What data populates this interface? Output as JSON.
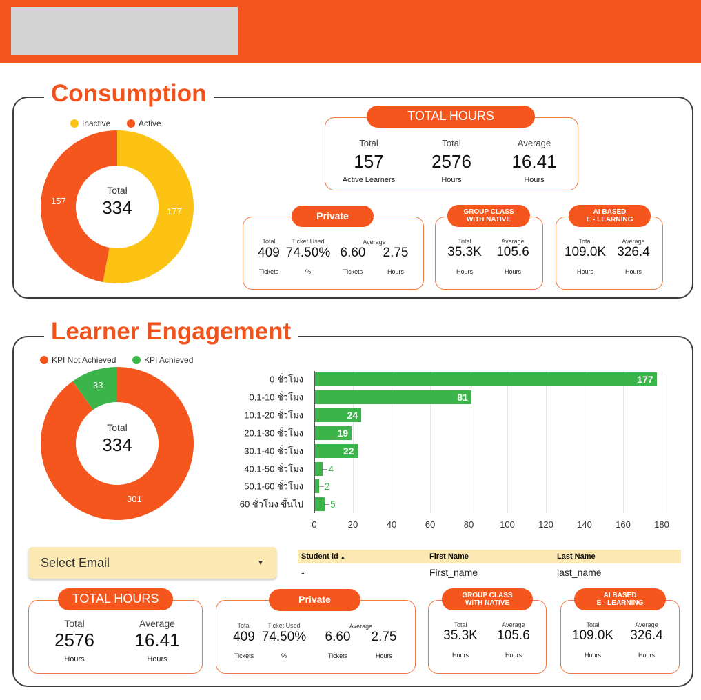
{
  "consumption": {
    "title": "Consumption",
    "donut": {
      "legend": [
        "Inactive",
        "Active"
      ],
      "colors": [
        "#fcc314",
        "#f5561e"
      ],
      "values": [
        177,
        157
      ],
      "center_label": "Total",
      "center_value": "334",
      "labels": [
        "177",
        "157"
      ]
    },
    "total_hours": {
      "title": "TOTAL HOURS",
      "cols": [
        {
          "label": "Total",
          "value": "157",
          "unit": "Active Learners"
        },
        {
          "label": "Total",
          "value": "2576",
          "unit": "Hours"
        },
        {
          "label": "Average",
          "value": "16.41",
          "unit": "Hours"
        }
      ]
    },
    "private": {
      "title": "Private",
      "avg_label": "Average",
      "cols": [
        {
          "label": "Total",
          "value": "409",
          "unit": "Tickets"
        },
        {
          "label": "Ticket Used",
          "value": "74.50%",
          "unit": "%"
        },
        {
          "label": "",
          "value": "6.60",
          "unit": "Tickets"
        },
        {
          "label": "",
          "value": "2.75",
          "unit": "Hours"
        }
      ]
    },
    "group": {
      "title1": "GROUP CLASS",
      "title2": "WITH NATIVE",
      "cols": [
        {
          "label": "Total",
          "value": "35.3K",
          "unit": "Hours"
        },
        {
          "label": "Average",
          "value": "105.6",
          "unit": "Hours"
        }
      ]
    },
    "ai": {
      "title1": "AI BASED",
      "title2": "E - LEARNING",
      "cols": [
        {
          "label": "Total",
          "value": "109.0K",
          "unit": "Hours"
        },
        {
          "label": "Average",
          "value": "326.4",
          "unit": "Hours"
        }
      ]
    }
  },
  "engagement": {
    "title": "Learner Engagement",
    "donut": {
      "legend": [
        "KPI Not Achieved",
        "KPI Achieved"
      ],
      "colors": [
        "#f5561e",
        "#3bb54a"
      ],
      "values": [
        301,
        33
      ],
      "center_label": "Total",
      "center_value": "334",
      "labels": [
        "301",
        "33"
      ]
    },
    "select_email": "Select Email",
    "table": {
      "headers": [
        "Student id",
        "First Name",
        "Last Name"
      ],
      "sort_icon": "▲",
      "rows": [
        [
          "-",
          "First_name",
          "last_name"
        ]
      ]
    },
    "total_hours": {
      "title": "TOTAL HOURS",
      "cols": [
        {
          "label": "Total",
          "value": "2576",
          "unit": "Hours"
        },
        {
          "label": "Average",
          "value": "16.41",
          "unit": "Hours"
        }
      ]
    },
    "private": {
      "title": "Private",
      "avg_label": "Average",
      "cols": [
        {
          "label": "Total",
          "value": "409",
          "unit": "Tickets"
        },
        {
          "label": "Ticket Used",
          "value": "74.50%",
          "unit": "%"
        },
        {
          "label": "",
          "value": "6.60",
          "unit": "Tickets"
        },
        {
          "label": "",
          "value": "2.75",
          "unit": "Hours"
        }
      ]
    },
    "group": {
      "title1": "GROUP CLASS",
      "title2": "WITH NATIVE",
      "cols": [
        {
          "label": "Total",
          "value": "35.3K",
          "unit": "Hours"
        },
        {
          "label": "Average",
          "value": "105.6",
          "unit": "Hours"
        }
      ]
    },
    "ai": {
      "title1": "AI BASED",
      "title2": "E - LEARNING",
      "cols": [
        {
          "label": "Total",
          "value": "109.0K",
          "unit": "Hours"
        },
        {
          "label": "Average",
          "value": "326.4",
          "unit": "Hours"
        }
      ]
    }
  },
  "chart_data": {
    "type": "bar",
    "orientation": "horizontal",
    "categories": [
      "0 ชั่วโมง",
      "0.1-10 ชั่วโมง",
      "10.1-20 ชั่วโมง",
      "20.1-30 ชั่วโมง",
      "30.1-40 ชั่วโมง",
      "40.1-50 ชั่วโมง",
      "50.1-60 ชั่วโมง",
      "60 ชั่วโมง ขึ้นไป"
    ],
    "values": [
      177,
      81,
      24,
      19,
      22,
      4,
      2,
      5
    ],
    "xlim": [
      0,
      180
    ],
    "xticks": [
      "0",
      "20",
      "40",
      "60",
      "80",
      "100",
      "120",
      "140",
      "160",
      "180"
    ],
    "color": "#3bb54a",
    "grid": true
  }
}
